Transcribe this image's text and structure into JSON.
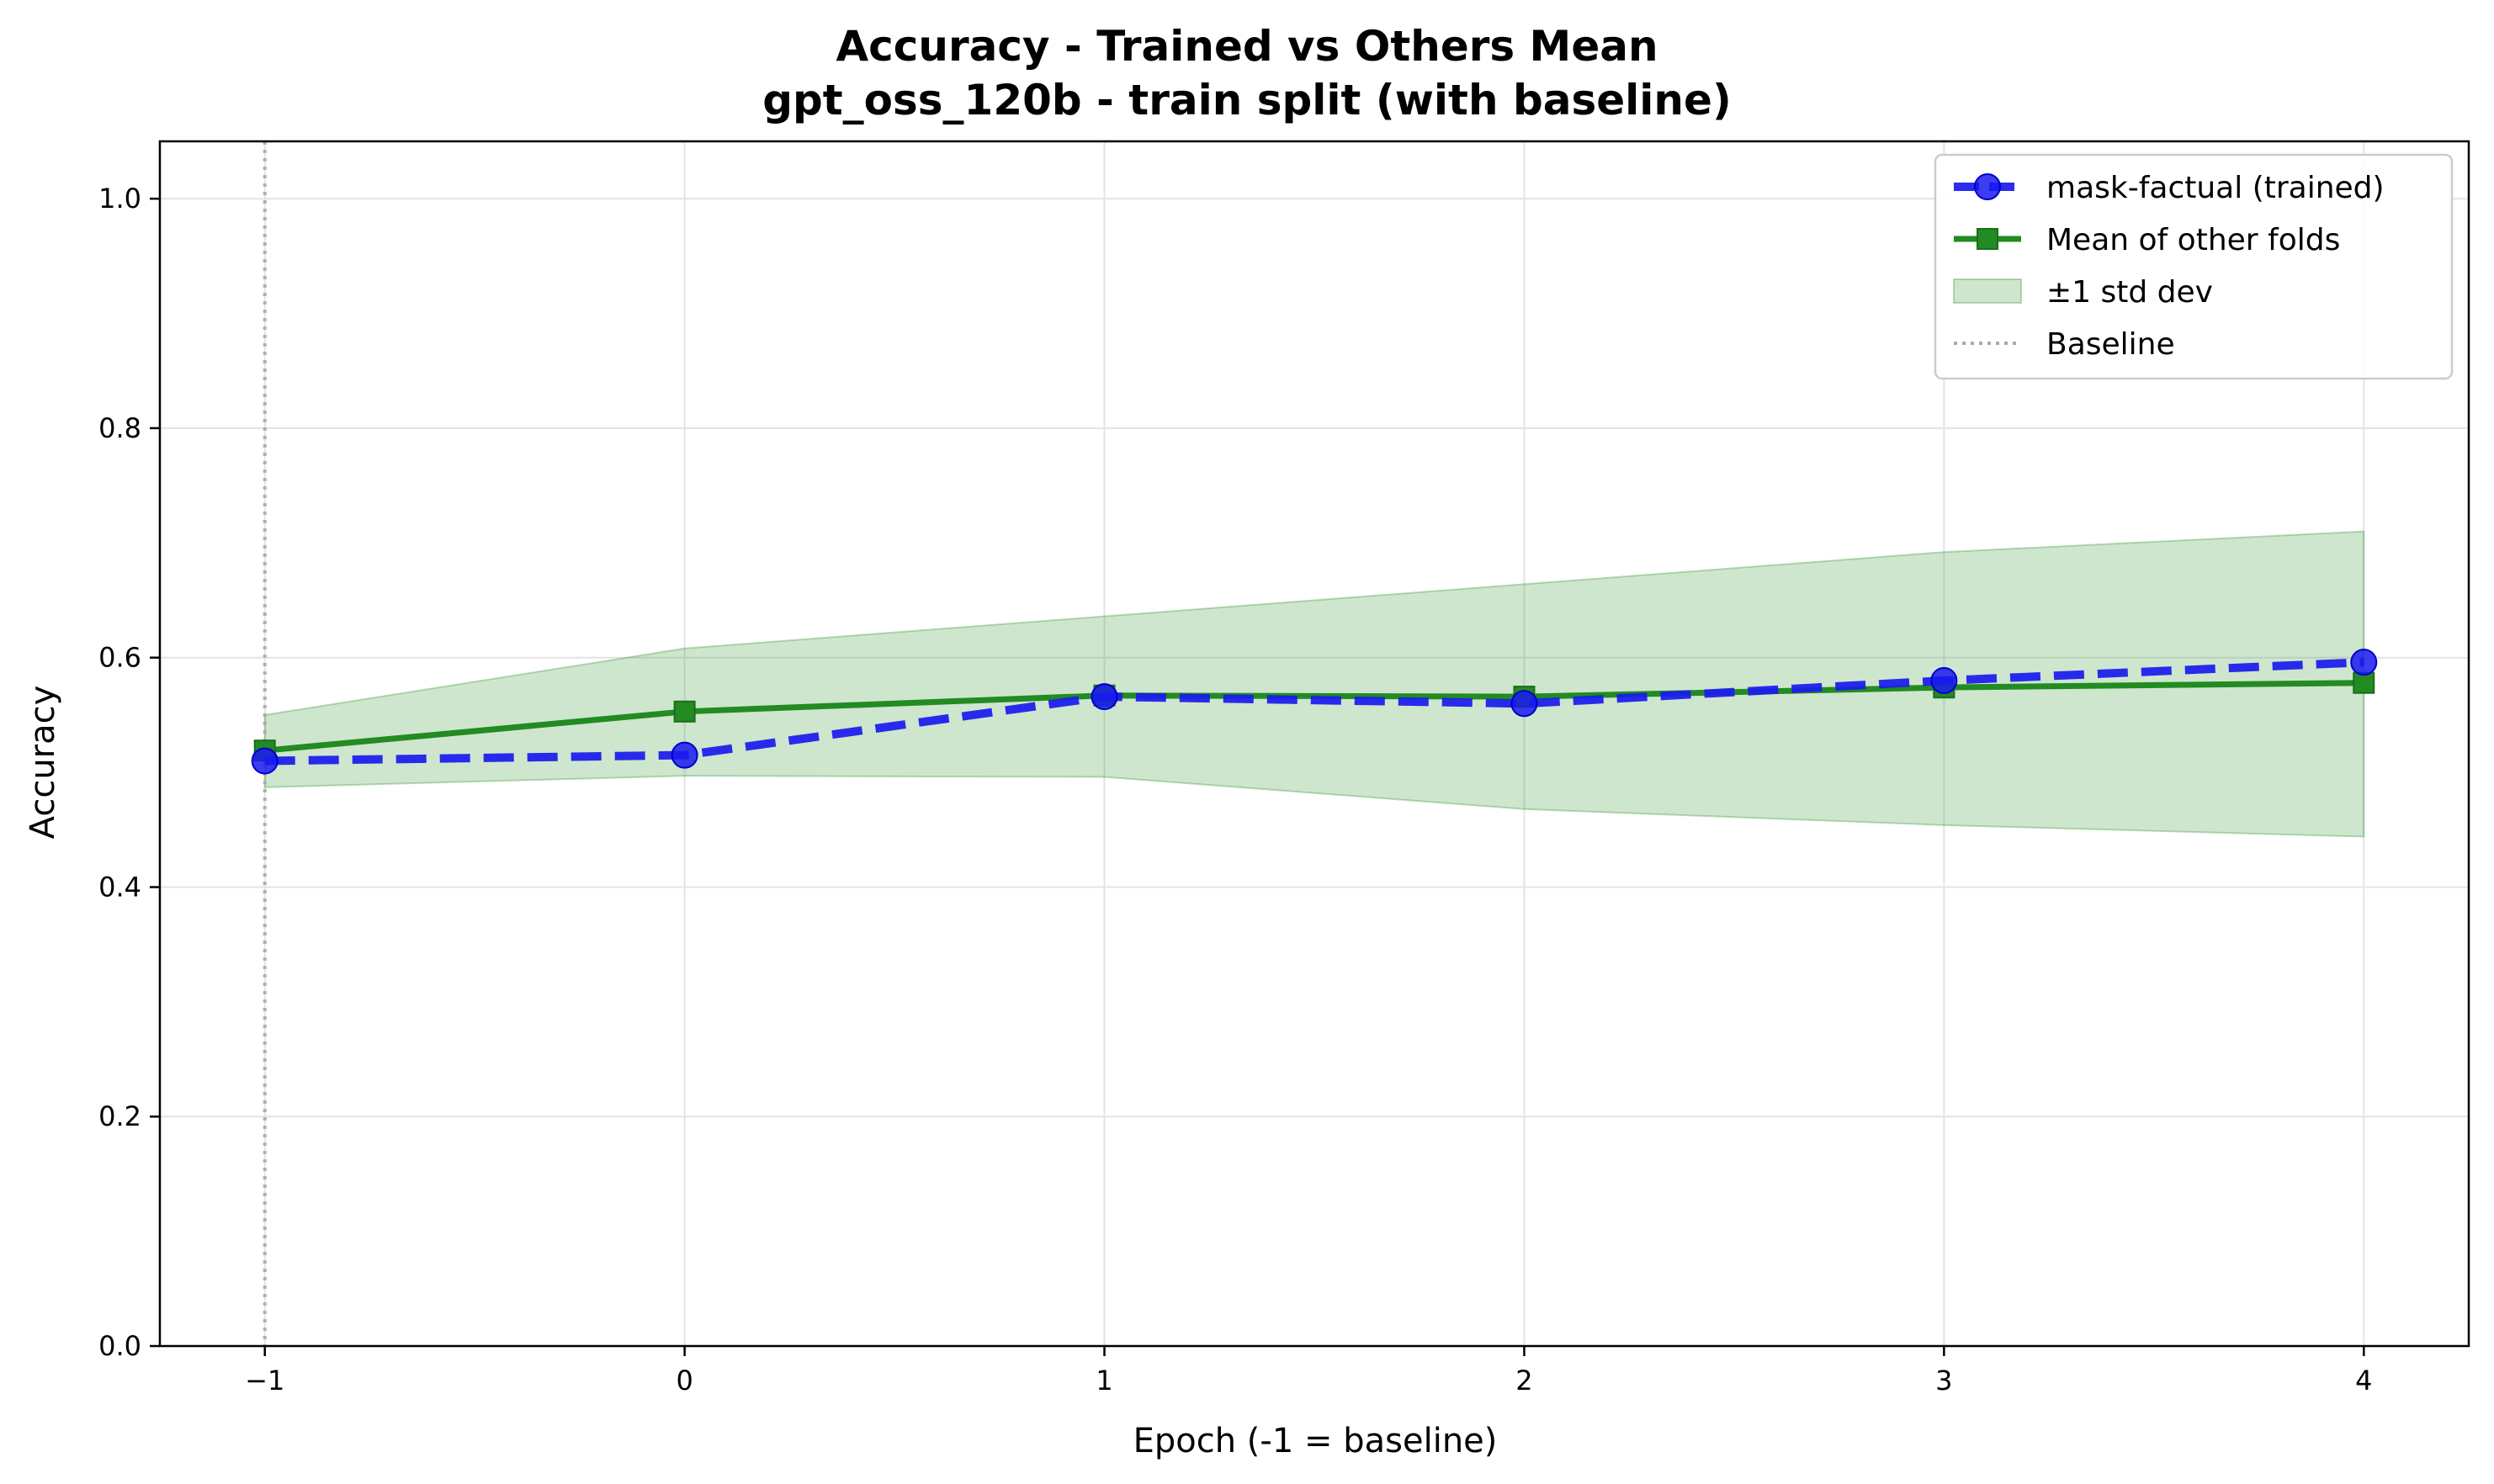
{
  "chart_data": {
    "type": "line",
    "title": "Accuracy - Trained vs Others Mean",
    "subtitle": "gpt_oss_120b - train split (with baseline)",
    "xlabel": "Epoch (-1 = baseline)",
    "ylabel": "Accuracy",
    "x": [
      -1,
      0,
      1,
      2,
      3,
      4
    ],
    "xlim": [
      -1.25,
      4.25
    ],
    "ylim": [
      0.0,
      1.05
    ],
    "x_ticks": [
      -1,
      0,
      1,
      2,
      3,
      4
    ],
    "x_tick_labels": [
      "−1",
      "0",
      "1",
      "2",
      "3",
      "4"
    ],
    "y_ticks": [
      0.0,
      0.2,
      0.4,
      0.6,
      0.8,
      1.0
    ],
    "y_tick_labels": [
      "0.0",
      "0.2",
      "0.4",
      "0.6",
      "0.8",
      "1.0"
    ],
    "grid": true,
    "legend_position": "top-right",
    "series": [
      {
        "name": "mask-factual (trained)",
        "values": [
          0.51,
          0.515,
          0.566,
          0.56,
          0.58,
          0.596
        ],
        "color": "#1a1aee",
        "line_style": "dashed",
        "marker": "circle"
      },
      {
        "name": "Mean of other folds",
        "values": [
          0.519,
          0.553,
          0.567,
          0.566,
          0.574,
          0.578
        ],
        "color": "#228b22",
        "line_style": "solid",
        "marker": "square"
      }
    ],
    "band": {
      "name": "±1 std dev",
      "lower": [
        0.487,
        0.497,
        0.496,
        0.468,
        0.454,
        0.444
      ],
      "upper": [
        0.55,
        0.608,
        0.636,
        0.664,
        0.692,
        0.71
      ],
      "color": "#228b22"
    },
    "baseline": {
      "name": "Baseline",
      "x": -1,
      "color": "#a9a9a9",
      "line_style": "dotted"
    }
  }
}
